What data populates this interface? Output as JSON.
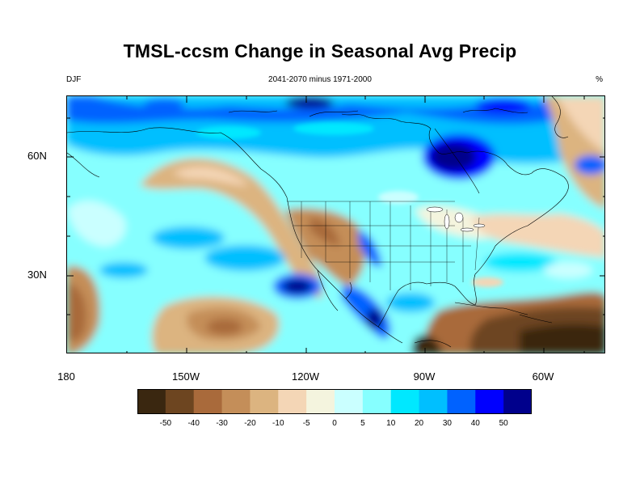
{
  "title": "TMSL-ccsm Change in Seasonal Avg Precip",
  "subtitle": {
    "left": "DJF",
    "center": "2041-2070 minus 1971-2000",
    "right": "%"
  },
  "axes": {
    "lat_labels": [
      "60N",
      "30N"
    ],
    "lon_labels": [
      "180",
      "150W",
      "120W",
      "90W",
      "60W"
    ]
  },
  "colorbar": {
    "colors": [
      "#3a2710",
      "#6d4520",
      "#a96a3b",
      "#c48e59",
      "#dcb480",
      "#f4d6b6",
      "#f4f4de",
      "#caffff",
      "#86ffff",
      "#00e8ff",
      "#00bfff",
      "#0062ff",
      "#0000ff",
      "#00008c"
    ],
    "labels": [
      "-50",
      "-40",
      "-30",
      "-20",
      "-10",
      "-5",
      "0",
      "5",
      "10",
      "20",
      "30",
      "40",
      "50"
    ]
  }
}
